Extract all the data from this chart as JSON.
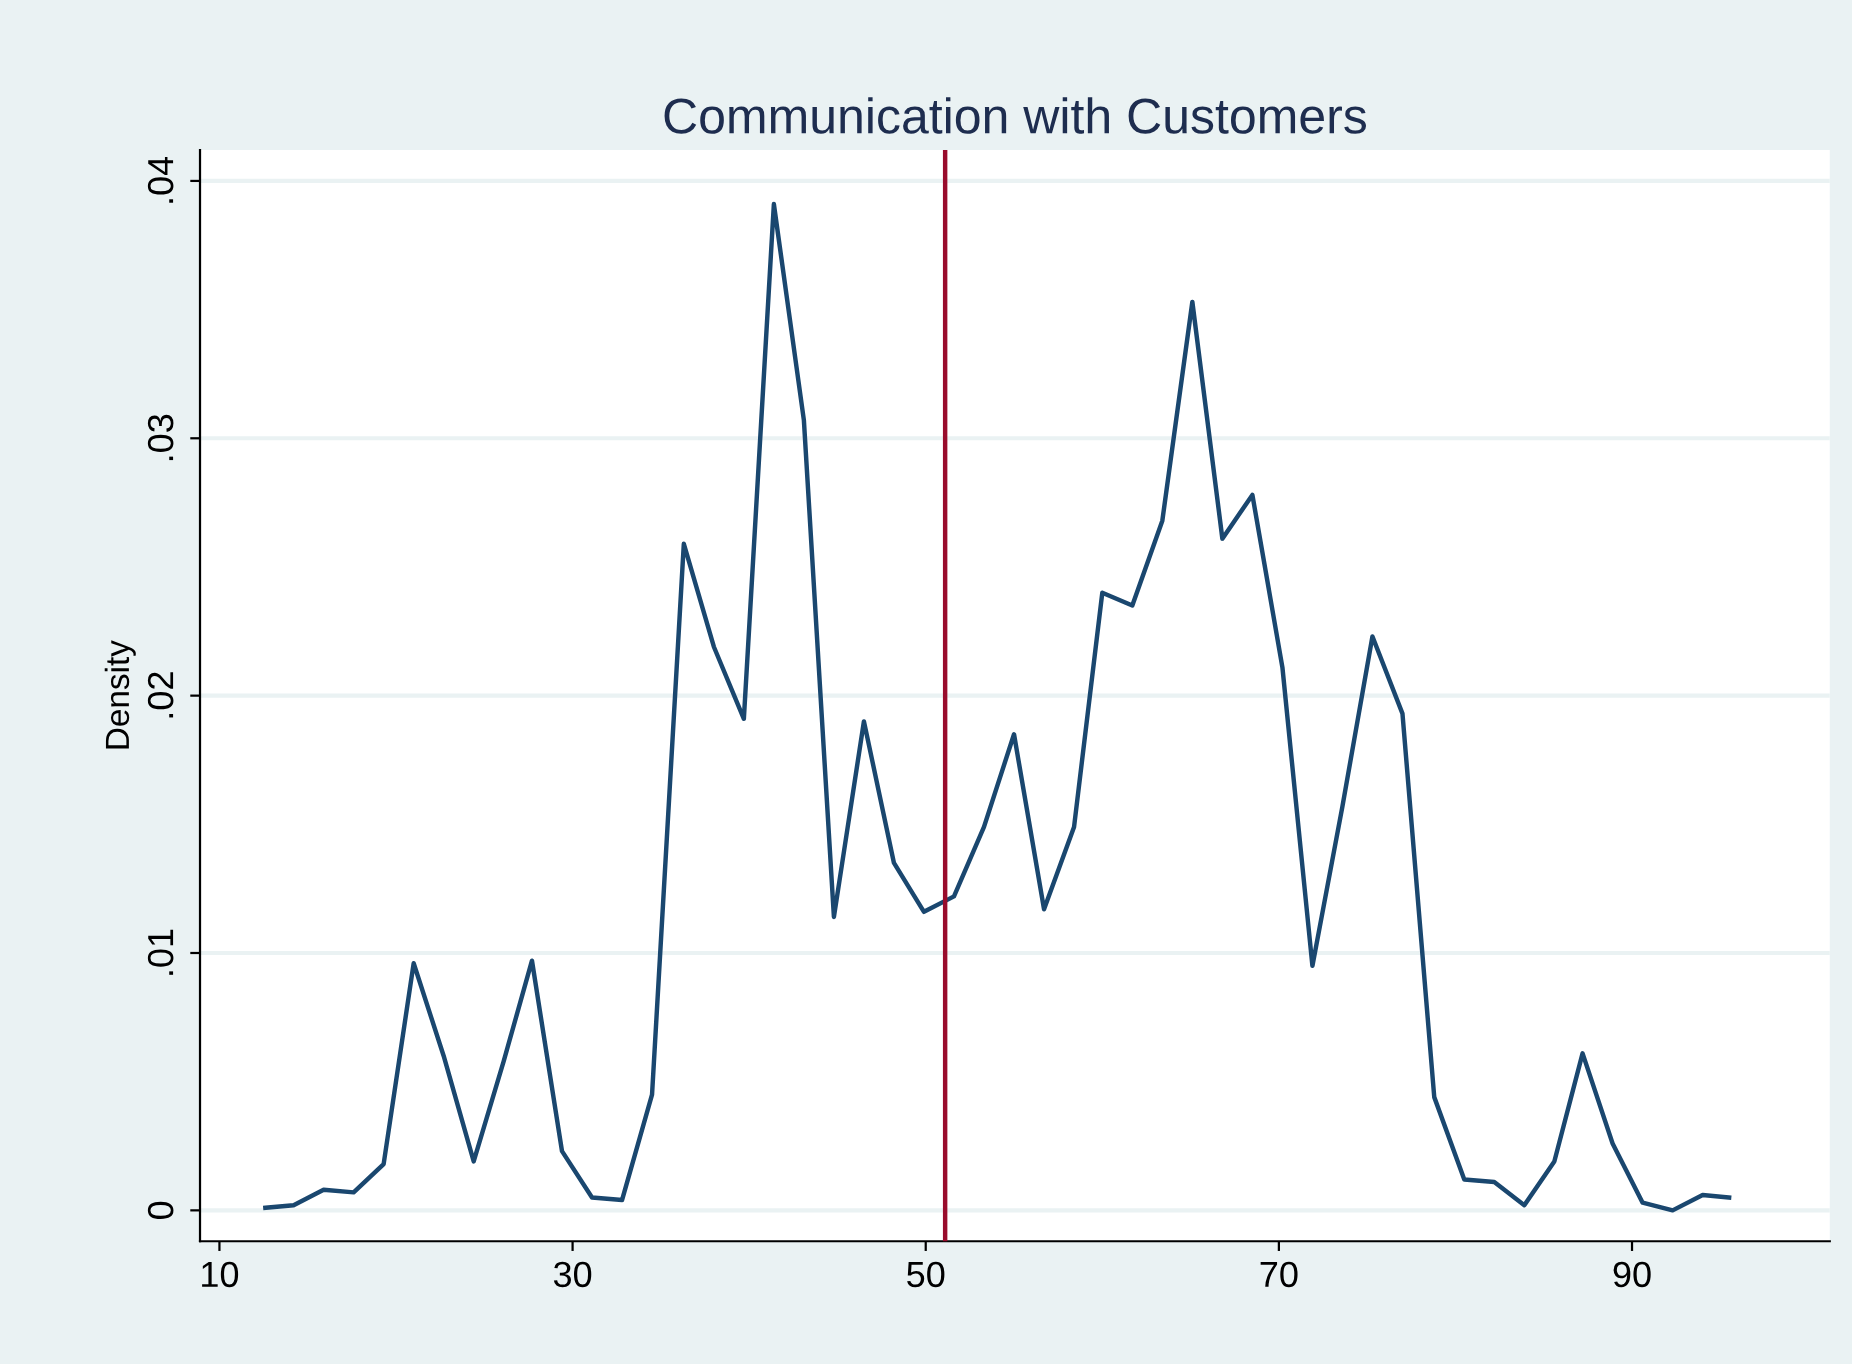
{
  "chart_data": {
    "type": "line",
    "title": "Communication with Customers",
    "ylabel": "Density",
    "x": [
      12.6,
      14.2,
      15.9,
      17.6,
      19.3,
      21.0,
      22.7,
      24.4,
      26.1,
      27.7,
      29.4,
      31.1,
      32.8,
      34.5,
      36.3,
      38.0,
      39.7,
      41.4,
      43.1,
      44.8,
      46.5,
      48.2,
      49.9,
      51.6,
      53.3,
      55.0,
      56.7,
      58.4,
      60.0,
      61.7,
      63.4,
      65.1,
      66.8,
      68.5,
      70.2,
      71.9,
      73.6,
      75.3,
      77.0,
      78.8,
      80.5,
      82.2,
      83.9,
      85.6,
      87.2,
      88.9,
      90.6,
      92.3,
      94.0,
      95.5
    ],
    "series": [
      {
        "color": "#1a476f",
        "values": [
          0.0001,
          0.0002,
          0.0008,
          0.0007,
          0.0018,
          0.0096,
          0.006,
          0.0019,
          0.0058,
          0.0097,
          0.0023,
          0.0005,
          0.0004,
          0.0045,
          0.0259,
          0.0219,
          0.0191,
          0.0391,
          0.0307,
          0.0114,
          0.019,
          0.0135,
          0.0116,
          0.0122,
          0.0149,
          0.0185,
          0.0117,
          0.0149,
          0.024,
          0.0235,
          0.0268,
          0.0353,
          0.0261,
          0.0278,
          0.0211,
          0.0095,
          0.0157,
          0.0223,
          0.0193,
          0.0044,
          0.0012,
          0.0011,
          0.0002,
          0.0019,
          0.0061,
          0.0026,
          0.0003,
          0.0,
          0.0006,
          0.0005
        ]
      }
    ],
    "xlim": [
      8.9,
      101.2
    ],
    "ylim": [
      -0.0012,
      0.0412
    ],
    "xticks": [
      10,
      30,
      50,
      70,
      90
    ],
    "yticks": [
      {
        "value": 0,
        "label": "0"
      },
      {
        "value": 0.01,
        "label": ".01"
      },
      {
        "value": 0.02,
        "label": ".02"
      },
      {
        "value": 0.03,
        "label": ".03"
      },
      {
        "value": 0.04,
        "label": ".04"
      }
    ],
    "ref_lines": [
      {
        "axis": "x",
        "value": 51.1,
        "color": "#990c2c"
      }
    ],
    "grid": "y",
    "legend": false,
    "line_style": "solid",
    "marker": "none"
  }
}
